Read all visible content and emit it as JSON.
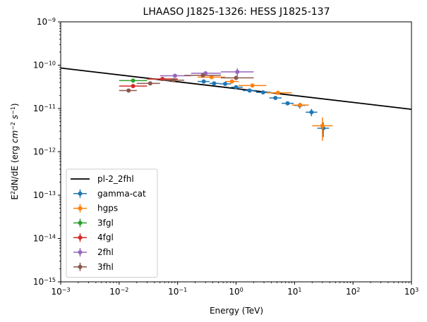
{
  "chart_data": {
    "type": "scatter",
    "title": "LHAASO J1825-1326: HESS J1825-137",
    "xlabel": "Energy (TeV)",
    "ylabel": "E2dN/dE (erg cm-2 s-1)",
    "xscale": "log",
    "yscale": "log",
    "xlim": [
      0.001,
      1000
    ],
    "ylim": [
      1e-15,
      1e-09
    ],
    "x_ticks": [
      {
        "value": 0.001,
        "base": "10",
        "exp": "−3"
      },
      {
        "value": 0.01,
        "base": "10",
        "exp": "−2"
      },
      {
        "value": 0.1,
        "base": "10",
        "exp": "−1"
      },
      {
        "value": 1,
        "base": "10",
        "exp": "0"
      },
      {
        "value": 10,
        "base": "10",
        "exp": "1"
      },
      {
        "value": 100,
        "base": "10",
        "exp": "2"
      },
      {
        "value": 1000,
        "base": "10",
        "exp": "3"
      }
    ],
    "y_ticks": [
      {
        "value": 1e-15,
        "base": "10",
        "exp": "−15"
      },
      {
        "value": 1e-14,
        "base": "10",
        "exp": "−14"
      },
      {
        "value": 1e-13,
        "base": "10",
        "exp": "−13"
      },
      {
        "value": 1e-12,
        "base": "10",
        "exp": "−12"
      },
      {
        "value": 1e-11,
        "base": "10",
        "exp": "−11"
      },
      {
        "value": 1e-10,
        "base": "10",
        "exp": "−10"
      },
      {
        "value": 1e-09,
        "base": "10",
        "exp": "−9"
      }
    ],
    "grid": false,
    "legend_position": "lower-left",
    "model": {
      "name": "pl-2_2fhl",
      "color": "#000000",
      "x": [
        0.001,
        1000
      ],
      "y": [
        8.6e-11,
        9.6e-12
      ]
    },
    "series": [
      {
        "name": "gamma-cat",
        "color": "#1f77b4",
        "points": [
          {
            "x": 0.28,
            "y": 4.2e-11,
            "xlo": 0.22,
            "xhi": 0.35,
            "ylo": 4e-11,
            "yhi": 4.4e-11
          },
          {
            "x": 0.42,
            "y": 3.8e-11,
            "xlo": 0.35,
            "xhi": 0.52,
            "ylo": 3.6e-11,
            "yhi": 4e-11
          },
          {
            "x": 0.65,
            "y": 3.7e-11,
            "xlo": 0.52,
            "xhi": 0.82,
            "ylo": 3.5e-11,
            "yhi": 3.9e-11
          },
          {
            "x": 1.0,
            "y": 3.1e-11,
            "xlo": 0.82,
            "xhi": 1.3,
            "ylo": 2.95e-11,
            "yhi": 3.25e-11
          },
          {
            "x": 1.7,
            "y": 2.6e-11,
            "xlo": 1.3,
            "xhi": 2.2,
            "ylo": 2.45e-11,
            "yhi": 2.75e-11
          },
          {
            "x": 2.9,
            "y": 2.35e-11,
            "xlo": 2.2,
            "xhi": 3.7,
            "ylo": 2.2e-11,
            "yhi": 2.5e-11
          },
          {
            "x": 4.7,
            "y": 1.75e-11,
            "xlo": 3.7,
            "xhi": 6.0,
            "ylo": 1.6e-11,
            "yhi": 1.9e-11
          },
          {
            "x": 7.6,
            "y": 1.32e-11,
            "xlo": 6.0,
            "xhi": 9.7,
            "ylo": 1.18e-11,
            "yhi": 1.46e-11
          },
          {
            "x": 12.3,
            "y": 1.18e-11,
            "xlo": 9.7,
            "xhi": 15.5,
            "ylo": 1e-11,
            "yhi": 1.36e-11
          },
          {
            "x": 19.5,
            "y": 8.2e-12,
            "xlo": 15.5,
            "xhi": 24.5,
            "ylo": 6.6e-12,
            "yhi": 9.8e-12
          },
          {
            "x": 31,
            "y": 3.5e-12,
            "xlo": 24.5,
            "xhi": 39,
            "ylo": 2.2e-12,
            "yhi": 4.8e-12
          }
        ]
      },
      {
        "name": "hgps",
        "color": "#ff7f0e",
        "points": [
          {
            "x": 0.38,
            "y": 5.3e-11,
            "xlo": 0.22,
            "xhi": 0.65,
            "ylo": 5.05e-11,
            "yhi": 5.55e-11
          },
          {
            "x": 0.85,
            "y": 4.2e-11,
            "xlo": 0.65,
            "xhi": 1.1,
            "ylo": 4e-11,
            "yhi": 4.4e-11
          },
          {
            "x": 1.9,
            "y": 3.4e-11,
            "xlo": 1.1,
            "xhi": 3.3,
            "ylo": 3.25e-11,
            "yhi": 3.55e-11
          },
          {
            "x": 5.2,
            "y": 2.3e-11,
            "xlo": 3.3,
            "xhi": 9.0,
            "ylo": 2.15e-11,
            "yhi": 2.45e-11
          },
          {
            "x": 12.5,
            "y": 1.2e-11,
            "xlo": 9.0,
            "xhi": 17.5,
            "ylo": 1.05e-11,
            "yhi": 1.35e-11
          },
          {
            "x": 30,
            "y": 4e-12,
            "xlo": 20,
            "xhi": 45,
            "ylo": 1.8e-12,
            "yhi": 6.2e-12
          }
        ]
      },
      {
        "name": "3fgl",
        "color": "#2ca02c",
        "points": [
          {
            "x": 0.0173,
            "y": 4.4e-11,
            "xlo": 0.01,
            "xhi": 0.03,
            "ylo": 4.2e-11,
            "yhi": 4.6e-11
          },
          {
            "x": 0.055,
            "y": 4.8e-11,
            "xlo": 0.03,
            "xhi": 0.1,
            "ylo": 4.6e-11,
            "yhi": 5e-11
          }
        ]
      },
      {
        "name": "4fgl",
        "color": "#d62728",
        "points": [
          {
            "x": 0.0173,
            "y": 3.3e-11,
            "xlo": 0.01,
            "xhi": 0.03,
            "ylo": 3.15e-11,
            "yhi": 3.45e-11
          },
          {
            "x": 0.055,
            "y": 4.8e-11,
            "xlo": 0.03,
            "xhi": 0.1,
            "ylo": 4.6e-11,
            "yhi": 5e-11
          }
        ]
      },
      {
        "name": "2fhl",
        "color": "#9467bd",
        "points": [
          {
            "x": 0.09,
            "y": 5.7e-11,
            "xlo": 0.05,
            "xhi": 0.17,
            "ylo": 5.45e-11,
            "yhi": 5.95e-11
          },
          {
            "x": 0.3,
            "y": 6.5e-11,
            "xlo": 0.17,
            "xhi": 0.55,
            "ylo": 6.2e-11,
            "yhi": 6.8e-11
          },
          {
            "x": 1.05,
            "y": 7e-11,
            "xlo": 0.55,
            "xhi": 2.0,
            "ylo": 5.6e-11,
            "yhi": 8.4e-11
          }
        ]
      },
      {
        "name": "3fhl",
        "color": "#8c564b",
        "points": [
          {
            "x": 0.0145,
            "y": 2.6e-11,
            "xlo": 0.01,
            "xhi": 0.02,
            "ylo": 2.45e-11,
            "yhi": 2.75e-11
          },
          {
            "x": 0.034,
            "y": 3.8e-11,
            "xlo": 0.02,
            "xhi": 0.05,
            "ylo": 3.6e-11,
            "yhi": 4e-11
          },
          {
            "x": 0.085,
            "y": 4.5e-11,
            "xlo": 0.05,
            "xhi": 0.13,
            "ylo": 4.3e-11,
            "yhi": 4.7e-11
          },
          {
            "x": 0.27,
            "y": 5.8e-11,
            "xlo": 0.13,
            "xhi": 0.55,
            "ylo": 5.55e-11,
            "yhi": 6.05e-11
          },
          {
            "x": 1.0,
            "y": 5.1e-11,
            "xlo": 0.55,
            "xhi": 2.0,
            "ylo": 4.9e-11,
            "yhi": 5.3e-11
          }
        ]
      }
    ]
  }
}
